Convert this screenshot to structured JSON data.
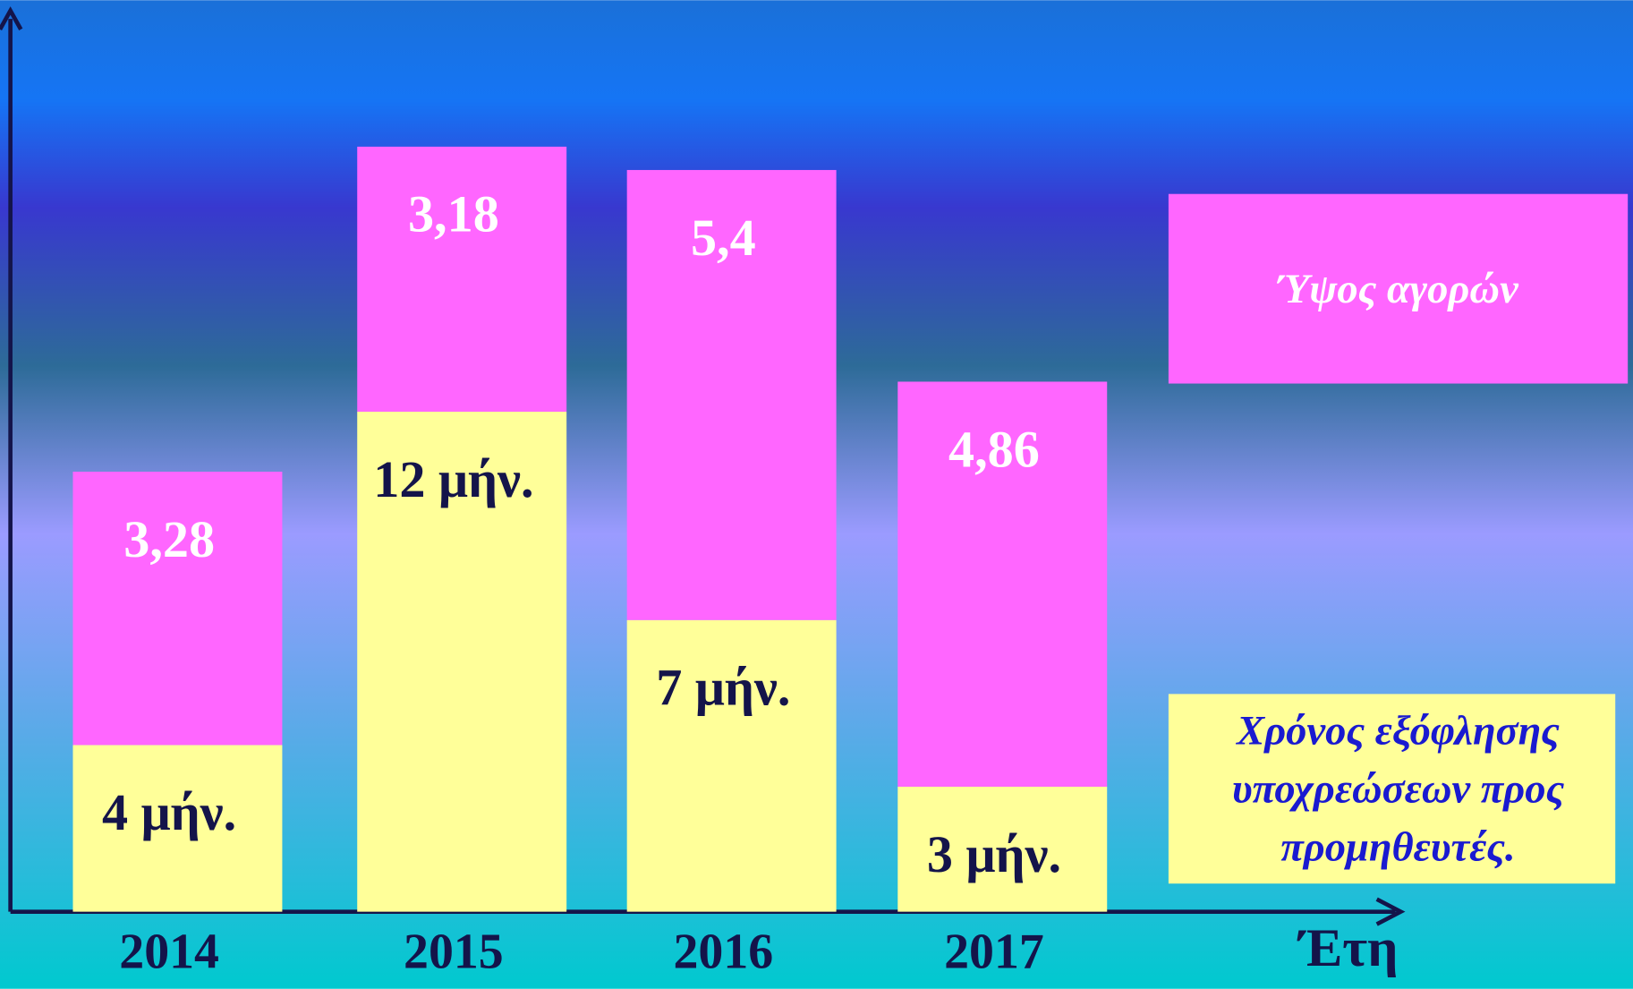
{
  "chart_data": {
    "type": "stacked-bar",
    "x_label": "Έτη",
    "categories": [
      "2014",
      "2015",
      "2016",
      "2017"
    ],
    "series": [
      {
        "name": "Χρόνος εξόφλησης υποχρεώσεων προς προμηθευτές.",
        "color": "#ffff99",
        "label_color": "#14144a",
        "values": [
          4,
          12,
          7,
          3
        ],
        "value_labels": [
          "4 μήν.",
          "12 μήν.",
          "7 μήν.",
          "3 μήν."
        ]
      },
      {
        "name": "Ύψος αγορών",
        "color": "#ff66ff",
        "label_color": "#ffffff",
        "values": [
          3.28,
          3.18,
          5.4,
          4.86
        ],
        "value_labels": [
          "3,28",
          "3,18",
          "5,4",
          "4,86"
        ]
      }
    ],
    "legend": "right"
  }
}
